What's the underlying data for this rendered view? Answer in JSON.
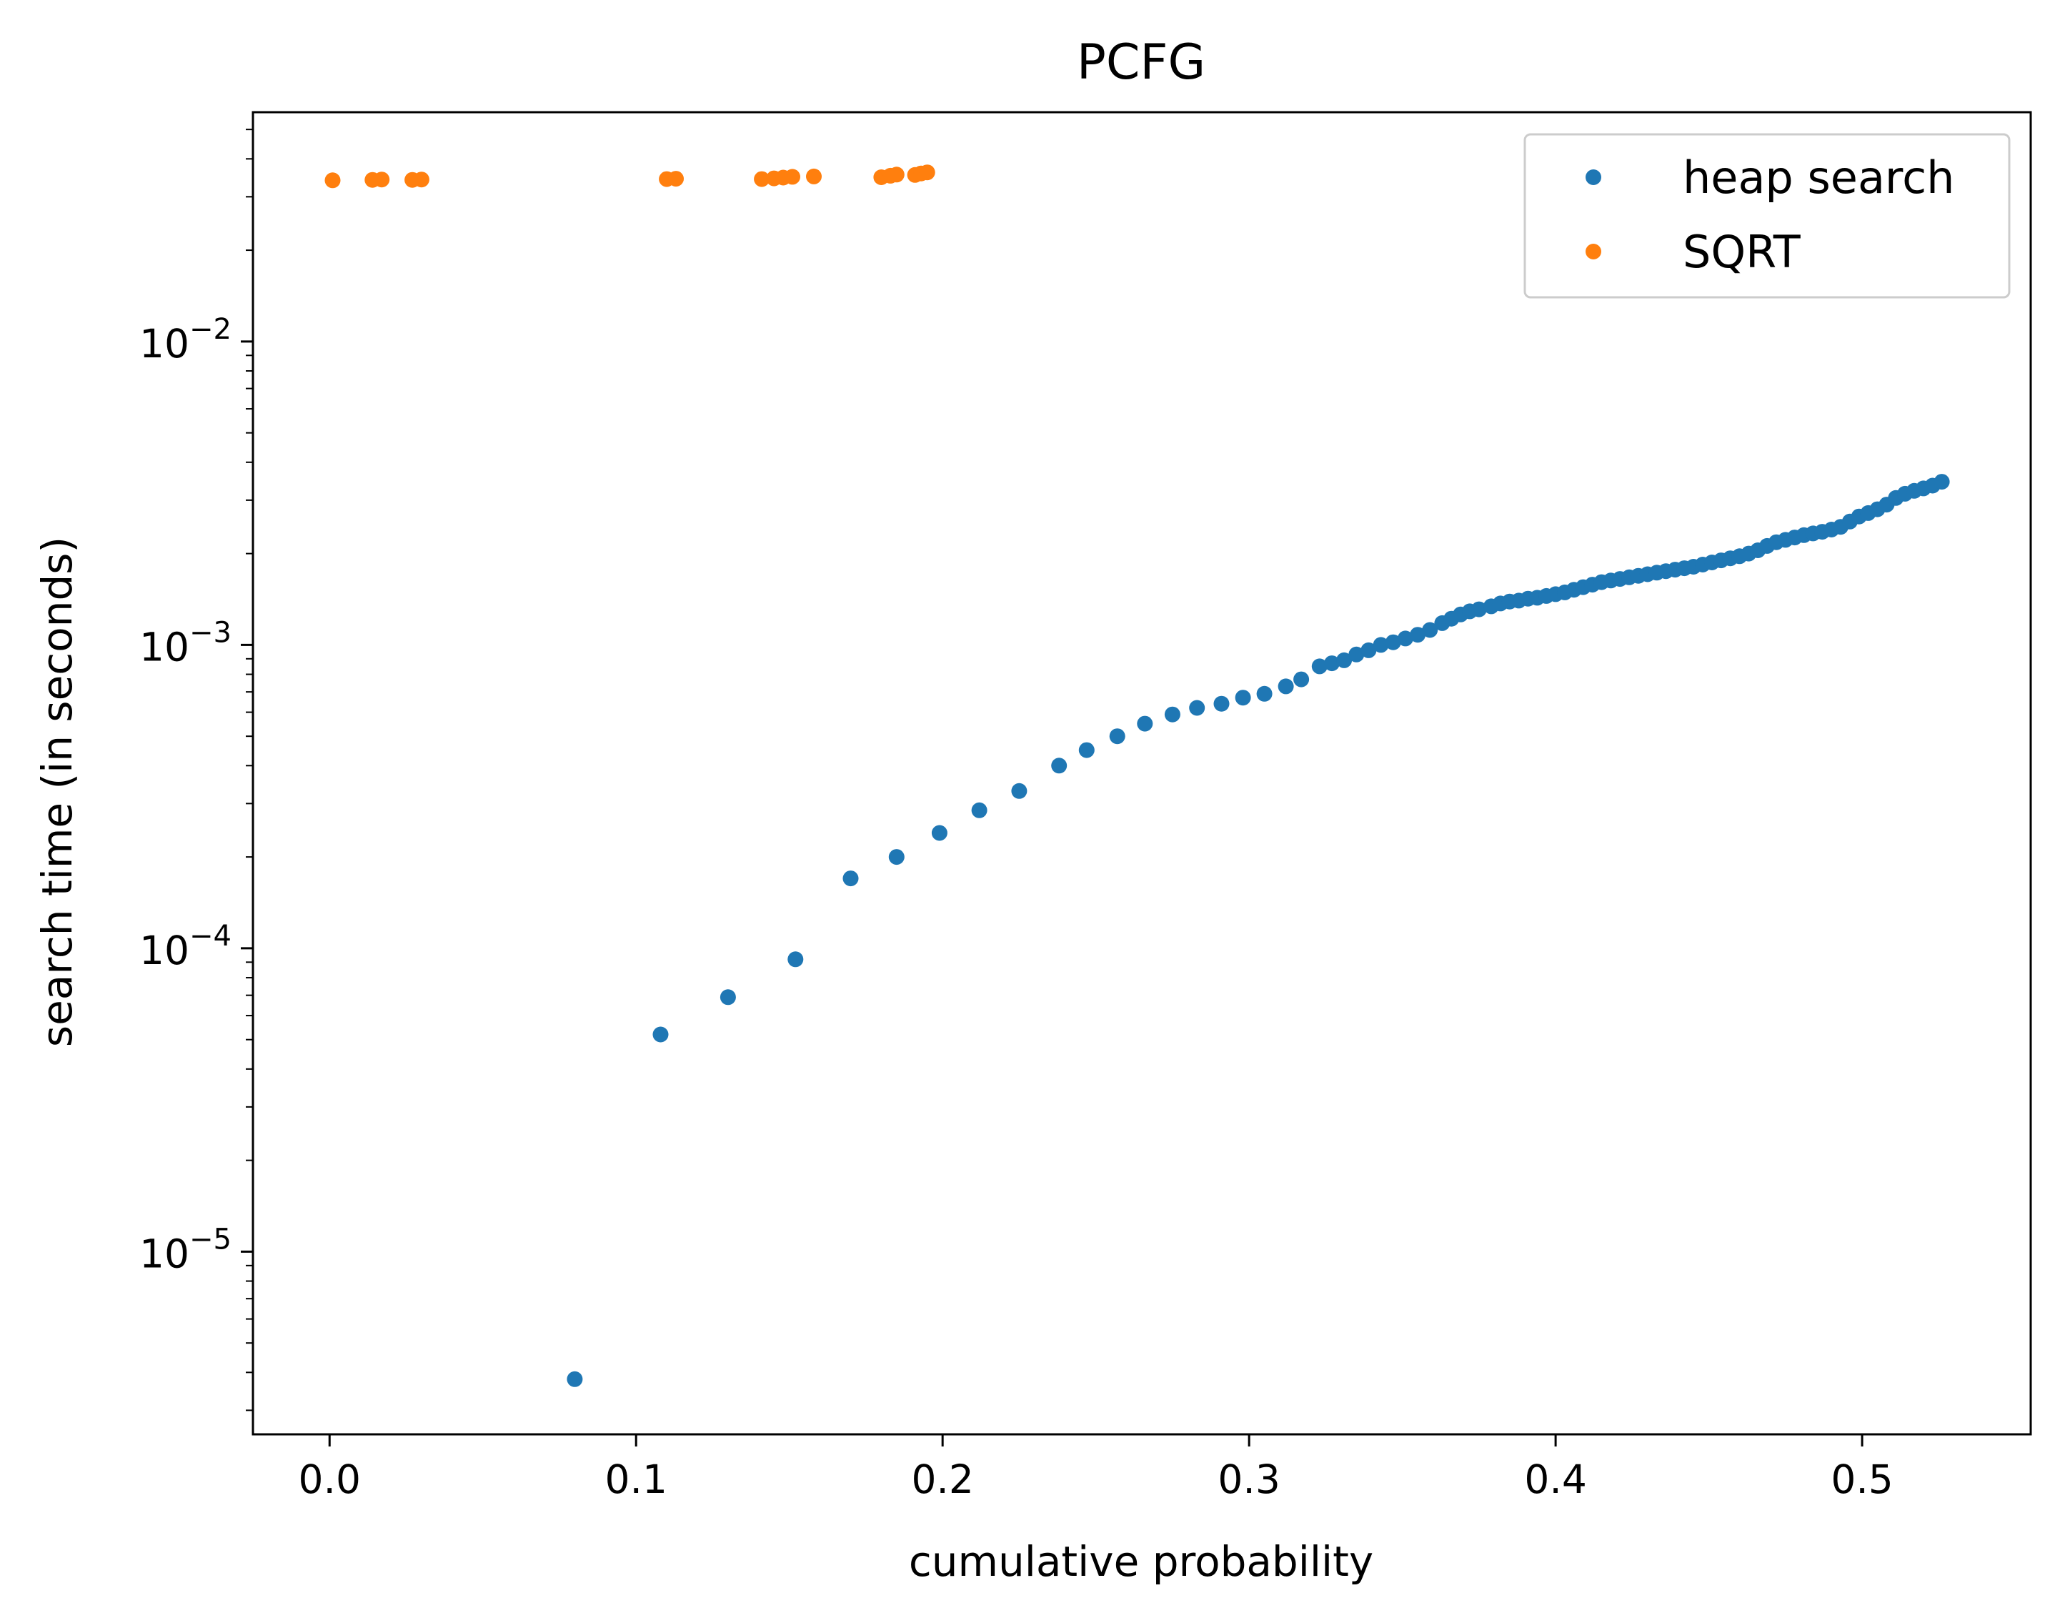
{
  "chart_data": {
    "type": "scatter",
    "title": "PCFG",
    "xlabel": "cumulative probability",
    "ylabel": "search time (in seconds)",
    "xlim": [
      -0.025,
      0.555
    ],
    "ylim": [
      2.5e-06,
      0.057
    ],
    "yscale": "log",
    "grid": false,
    "legend_position": "top-right",
    "x_ticks": [
      {
        "value": 0.0,
        "label": "0.0"
      },
      {
        "value": 0.1,
        "label": "0.1"
      },
      {
        "value": 0.2,
        "label": "0.2"
      },
      {
        "value": 0.3,
        "label": "0.3"
      },
      {
        "value": 0.4,
        "label": "0.4"
      },
      {
        "value": 0.5,
        "label": "0.5"
      }
    ],
    "y_ticks": [
      {
        "value": 1e-05,
        "base": "10",
        "exp": "−5"
      },
      {
        "value": 0.0001,
        "base": "10",
        "exp": "−4"
      },
      {
        "value": 0.001,
        "base": "10",
        "exp": "−3"
      },
      {
        "value": 0.01,
        "base": "10",
        "exp": "−2"
      }
    ],
    "series": [
      {
        "name": "heap search",
        "color": "#1f77b4",
        "x": [
          0.08,
          0.108,
          0.13,
          0.152,
          0.17,
          0.185,
          0.199,
          0.212,
          0.225,
          0.238,
          0.247,
          0.257,
          0.266,
          0.275,
          0.283,
          0.291,
          0.298,
          0.305,
          0.312,
          0.317,
          0.323,
          0.327,
          0.331,
          0.335,
          0.339,
          0.343,
          0.347,
          0.351,
          0.355,
          0.359,
          0.363,
          0.366,
          0.369,
          0.372,
          0.375,
          0.379,
          0.382,
          0.385,
          0.388,
          0.391,
          0.394,
          0.397,
          0.4,
          0.403,
          0.406,
          0.409,
          0.412,
          0.415,
          0.418,
          0.421,
          0.424,
          0.427,
          0.43,
          0.433,
          0.436,
          0.439,
          0.442,
          0.445,
          0.448,
          0.451,
          0.454,
          0.457,
          0.46,
          0.463,
          0.466,
          0.469,
          0.472,
          0.475,
          0.478,
          0.481,
          0.484,
          0.487,
          0.49,
          0.493,
          0.496,
          0.499,
          0.502,
          0.505,
          0.508,
          0.511,
          0.514,
          0.517,
          0.52,
          0.523,
          0.526
        ],
        "y": [
          3.8e-06,
          5.2e-05,
          6.9e-05,
          9.2e-05,
          0.00017,
          0.0002,
          0.00024,
          0.000285,
          0.00033,
          0.0004,
          0.00045,
          0.0005,
          0.00055,
          0.00059,
          0.00062,
          0.00064,
          0.00067,
          0.00069,
          0.00073,
          0.00077,
          0.00085,
          0.00087,
          0.00089,
          0.00093,
          0.00096,
          0.001,
          0.00102,
          0.00105,
          0.00108,
          0.00112,
          0.00118,
          0.00122,
          0.00126,
          0.00129,
          0.00131,
          0.00134,
          0.00137,
          0.00139,
          0.0014,
          0.00142,
          0.00143,
          0.00145,
          0.00147,
          0.00149,
          0.00152,
          0.00155,
          0.00158,
          0.00161,
          0.00163,
          0.00165,
          0.00167,
          0.00169,
          0.00171,
          0.00173,
          0.00175,
          0.00177,
          0.00179,
          0.00181,
          0.00184,
          0.00187,
          0.0019,
          0.00193,
          0.00196,
          0.002,
          0.00205,
          0.00212,
          0.00218,
          0.00222,
          0.00226,
          0.0023,
          0.00233,
          0.00236,
          0.0024,
          0.00245,
          0.00255,
          0.00265,
          0.00272,
          0.0028,
          0.0029,
          0.00305,
          0.00315,
          0.00322,
          0.00328,
          0.00335,
          0.00345
        ]
      },
      {
        "name": "SQRT",
        "color": "#ff7f0e",
        "x": [
          0.001,
          0.014,
          0.017,
          0.027,
          0.03,
          0.11,
          0.113,
          0.141,
          0.145,
          0.148,
          0.151,
          0.158,
          0.18,
          0.183,
          0.185,
          0.191,
          0.193,
          0.195
        ],
        "y": [
          0.034,
          0.0341,
          0.0342,
          0.0341,
          0.0342,
          0.0343,
          0.0344,
          0.0343,
          0.0345,
          0.0347,
          0.0349,
          0.035,
          0.0348,
          0.0352,
          0.0355,
          0.0354,
          0.0358,
          0.0361
        ]
      }
    ]
  }
}
